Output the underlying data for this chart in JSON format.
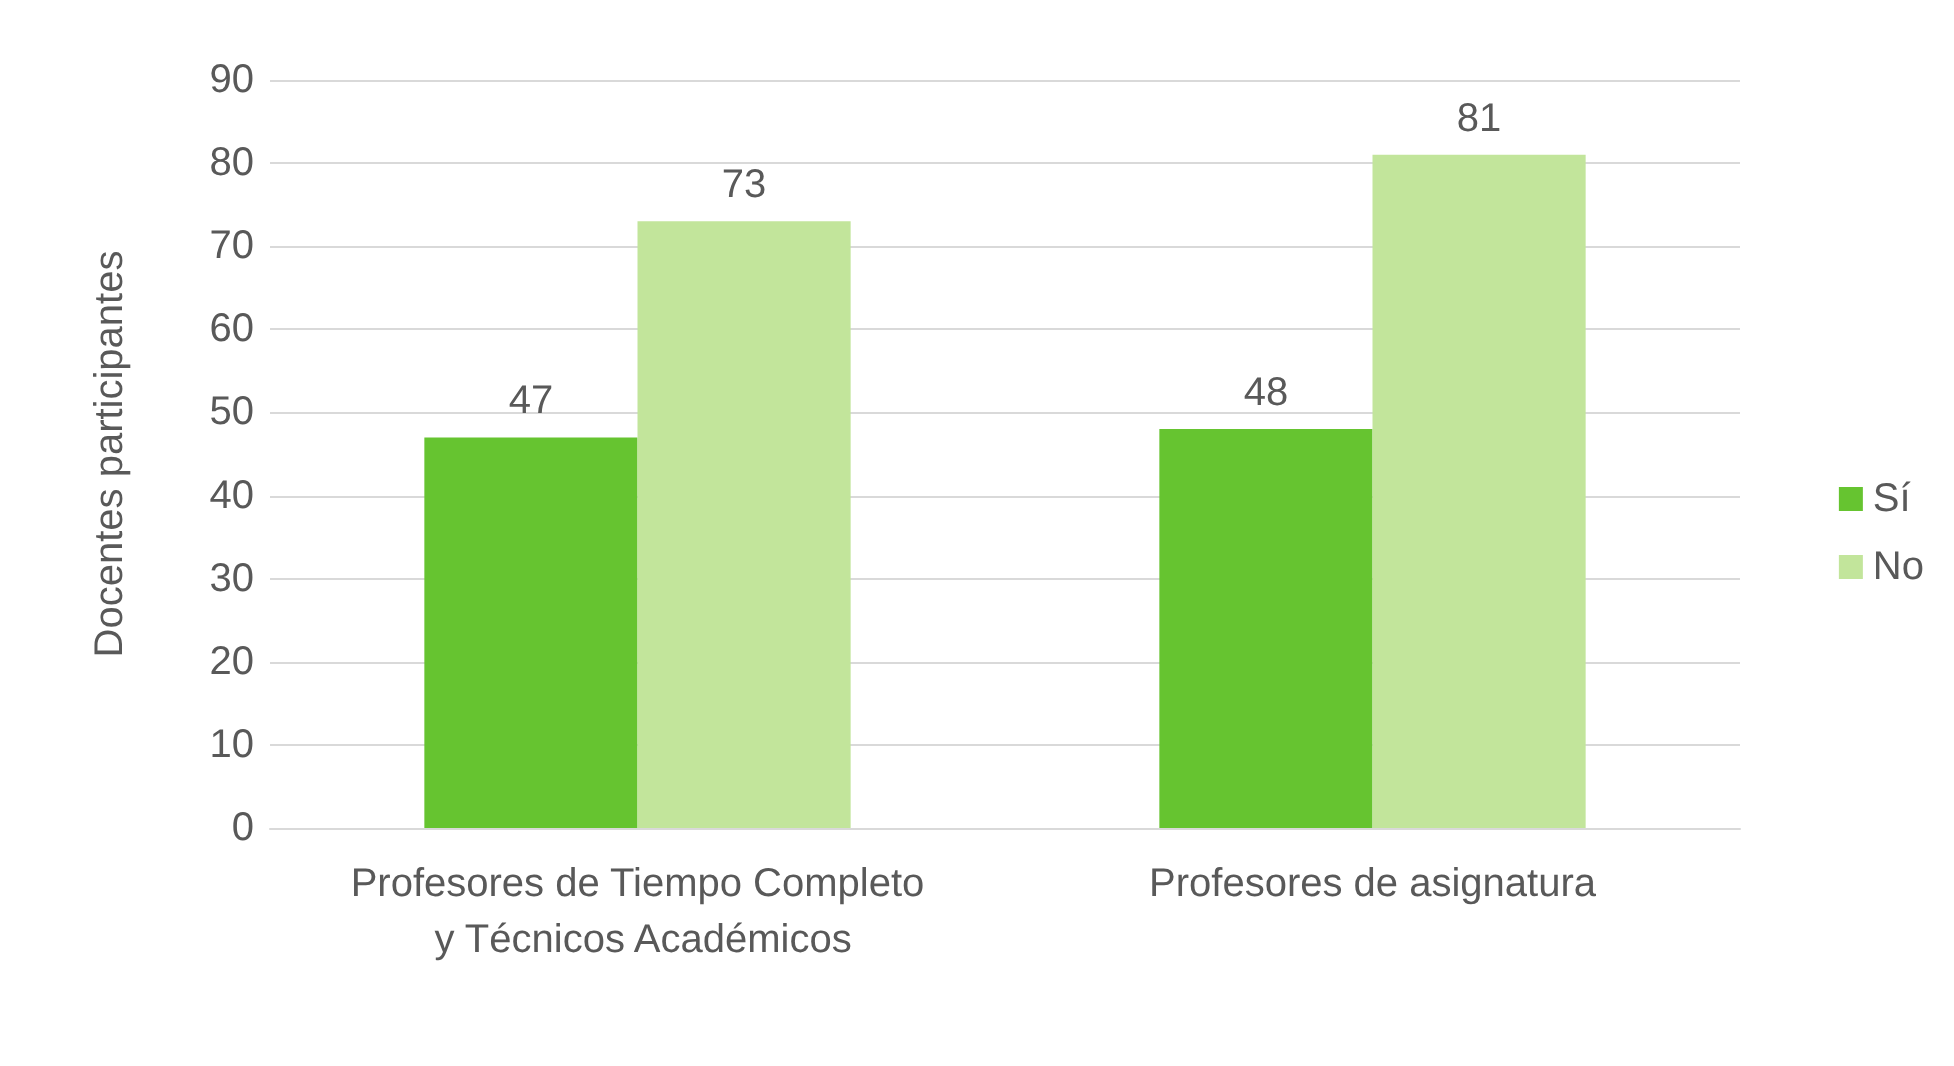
{
  "chart_data": {
    "type": "bar",
    "ylabel": "Docentes participantes",
    "categories": [
      "Profesores de Tiempo Completo y Técnicos Académicos",
      "Profesores de asignatura"
    ],
    "series": [
      {
        "name": "Sí",
        "color": "#66c430",
        "values": [
          47,
          48
        ]
      },
      {
        "name": "No",
        "color": "#c2e59b",
        "values": [
          73,
          81
        ]
      }
    ],
    "ylim": [
      0,
      90
    ],
    "yticks": [
      0,
      10,
      20,
      30,
      40,
      50,
      60,
      70,
      80,
      90
    ],
    "grid": "y",
    "legend": "right",
    "data_labels": true
  }
}
